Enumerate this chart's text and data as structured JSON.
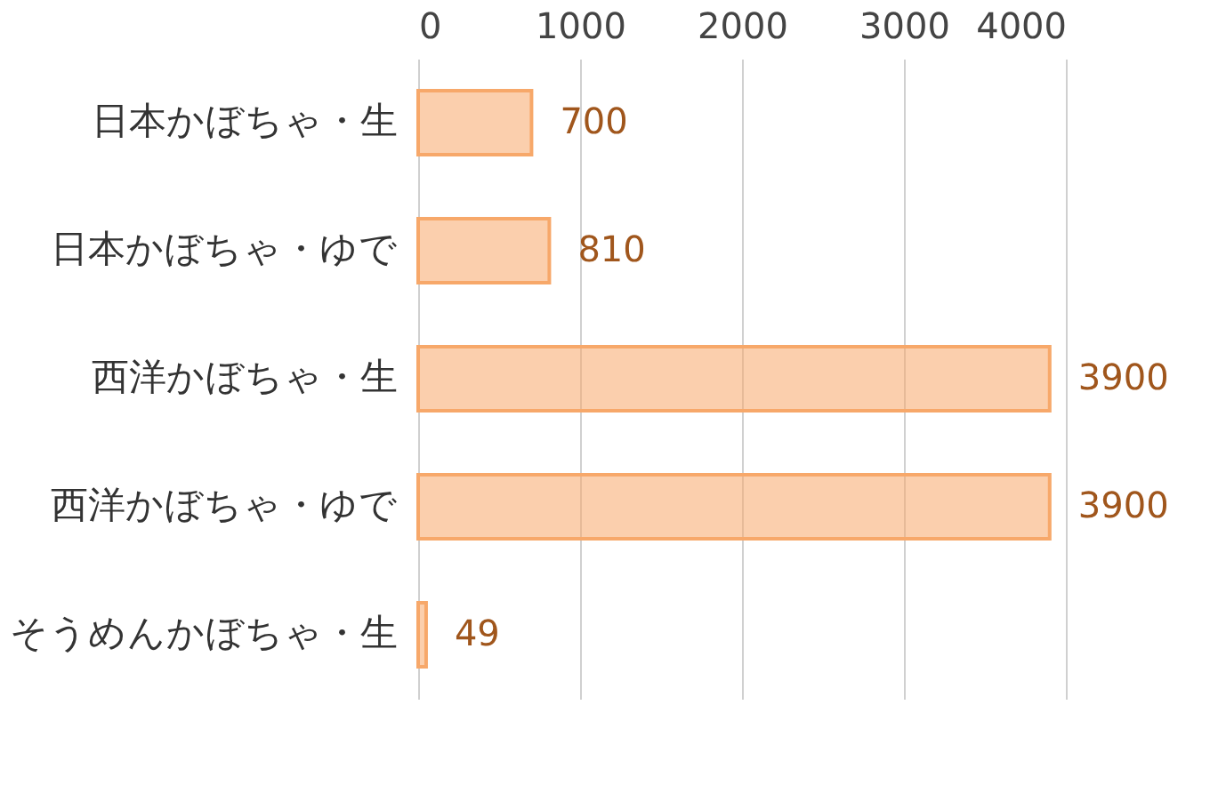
{
  "chart_data": {
    "type": "bar",
    "orientation": "horizontal",
    "categories": [
      "日本かぼちゃ・生",
      "日本かぼちゃ・ゆで",
      "西洋かぼちゃ・生",
      "西洋かぼちゃ・ゆで",
      "そうめんかぼちゃ・生"
    ],
    "values": [
      700,
      810,
      3900,
      3900,
      49
    ],
    "color": "#f7a86a",
    "xlim": [
      0,
      4000
    ],
    "xticks": [
      0,
      1000,
      2000,
      3000,
      4000
    ],
    "grid": "x",
    "data_labels": true
  }
}
